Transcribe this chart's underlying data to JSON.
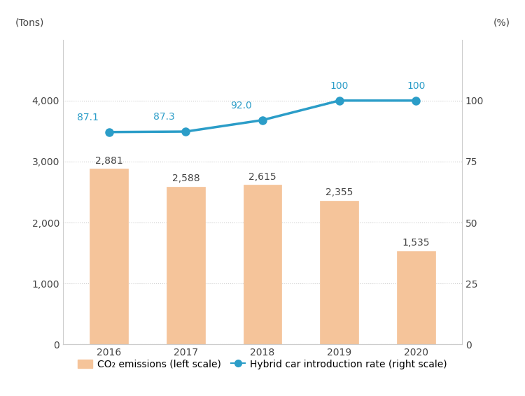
{
  "years": [
    2016,
    2017,
    2018,
    2019,
    2020
  ],
  "co2_emissions": [
    2881,
    2588,
    2615,
    2355,
    1535
  ],
  "hybrid_rate": [
    87.1,
    87.3,
    92.0,
    100,
    100
  ],
  "bar_color": "#F5C49A",
  "bar_edge_color": "#F5C49A",
  "line_color": "#2B9DC8",
  "marker_color": "#2B9DC8",
  "left_ylabel": "(Tons)",
  "right_ylabel": "(%)",
  "left_ylim": [
    0,
    5000
  ],
  "right_ylim": [
    0,
    125
  ],
  "left_yticks": [
    0,
    1000,
    2000,
    3000,
    4000
  ],
  "right_yticks": [
    0,
    25,
    50,
    75,
    100
  ],
  "left_ytick_labels": [
    "0",
    "1,000",
    "2,000",
    "3,000",
    "4,000"
  ],
  "right_ytick_labels": [
    "0",
    "25",
    "50",
    "75",
    "100"
  ],
  "legend_bar_label": "CO₂ emissions (left scale)",
  "legend_line_label": "Hybrid car introduction rate (right scale)",
  "background_color": "#ffffff",
  "grid_color": "#cccccc",
  "bar_width": 0.5,
  "label_fontsize": 10,
  "tick_fontsize": 10,
  "annot_fontsize": 10
}
